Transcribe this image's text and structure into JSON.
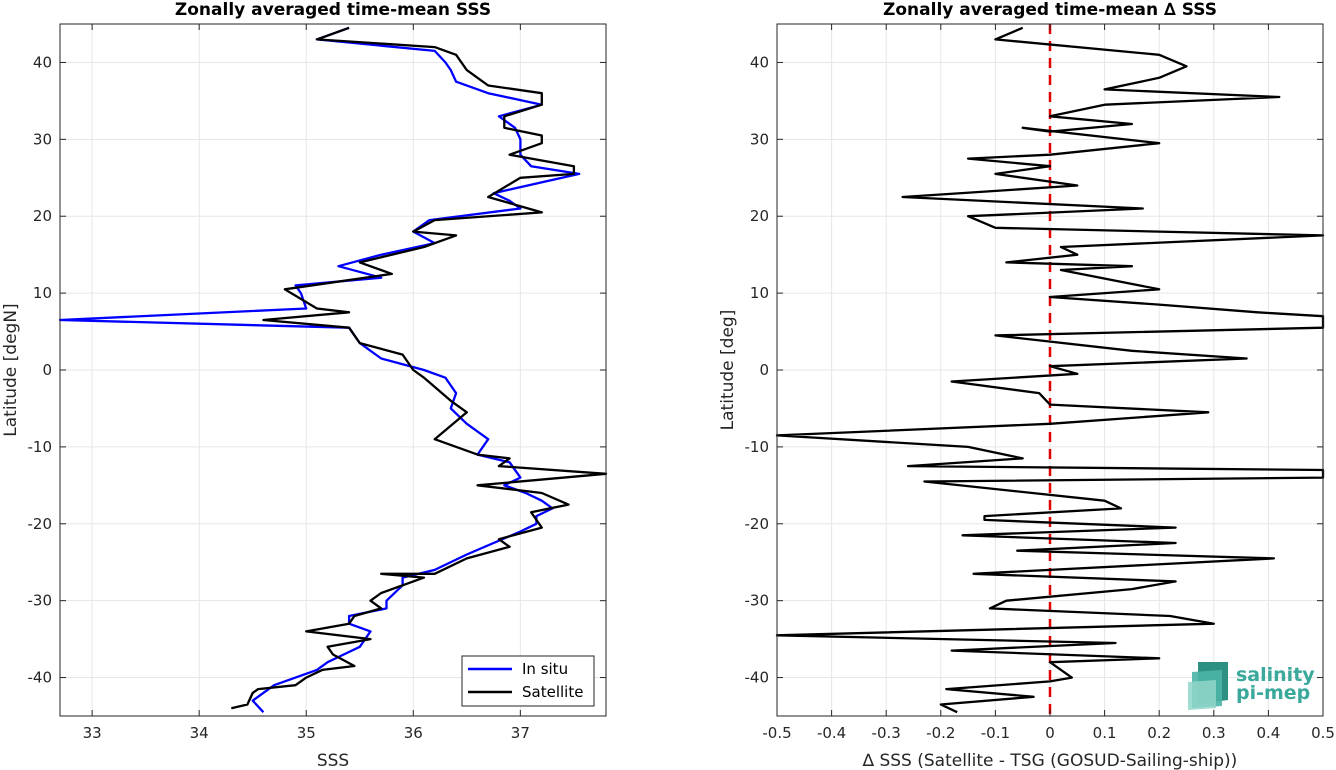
{
  "colors": {
    "insitu": "#0000ff",
    "satellite": "#000000",
    "zero_line": "#e00000",
    "grid": "#e6e6e6",
    "logo_teal": "#3aa89a"
  },
  "logo": {
    "line1": "salinity",
    "line2": "pi-mep"
  },
  "chart_data": [
    {
      "type": "line",
      "title": "Zonally averaged time-mean SSS",
      "xlabel": "SSS",
      "ylabel": "Latitude [degN]",
      "xlim": [
        32.7,
        37.8
      ],
      "ylim": [
        -45,
        45
      ],
      "xticks": [
        33,
        34,
        35,
        36,
        37
      ],
      "yticks": [
        -40,
        -30,
        -20,
        -10,
        0,
        10,
        20,
        30,
        40
      ],
      "grid": true,
      "legend_position": "bottom-right",
      "series": [
        {
          "name": "In situ",
          "color": "insitu",
          "points": [
            [
              35.4,
              44.5
            ],
            [
              35.1,
              43
            ],
            [
              36.2,
              41.5
            ],
            [
              36.3,
              40
            ],
            [
              36.35,
              39
            ],
            [
              36.4,
              37.5
            ],
            [
              36.7,
              36
            ],
            [
              37.2,
              34.5
            ],
            [
              36.8,
              33
            ],
            [
              36.95,
              31.5
            ],
            [
              37.0,
              30
            ],
            [
              37.0,
              28
            ],
            [
              37.1,
              26.5
            ],
            [
              37.55,
              25.5
            ],
            [
              36.75,
              23
            ],
            [
              36.9,
              22
            ],
            [
              37.0,
              21
            ],
            [
              36.15,
              19.5
            ],
            [
              36.0,
              18
            ],
            [
              36.2,
              16.5
            ],
            [
              35.7,
              15
            ],
            [
              35.3,
              13.5
            ],
            [
              35.7,
              12
            ],
            [
              34.9,
              11
            ],
            [
              34.95,
              10
            ],
            [
              35.0,
              8
            ],
            [
              32.7,
              6.5
            ],
            [
              35.4,
              5.5
            ],
            [
              35.5,
              3.5
            ],
            [
              35.7,
              1.5
            ],
            [
              36.1,
              0
            ],
            [
              36.3,
              -1
            ],
            [
              36.4,
              -3
            ],
            [
              36.35,
              -5
            ],
            [
              36.5,
              -7
            ],
            [
              36.7,
              -9
            ],
            [
              36.6,
              -11
            ],
            [
              36.9,
              -12
            ],
            [
              37.0,
              -14
            ],
            [
              36.85,
              -15
            ],
            [
              37.05,
              -16
            ],
            [
              37.2,
              -17
            ],
            [
              37.3,
              -18
            ],
            [
              37.15,
              -19
            ],
            [
              37.15,
              -20
            ],
            [
              37.0,
              -21
            ],
            [
              36.5,
              -24
            ],
            [
              36.2,
              -26
            ],
            [
              35.9,
              -27
            ],
            [
              35.9,
              -28
            ],
            [
              35.75,
              -30
            ],
            [
              35.75,
              -31
            ],
            [
              35.4,
              -32
            ],
            [
              35.4,
              -33
            ],
            [
              35.6,
              -34
            ],
            [
              35.55,
              -35
            ],
            [
              35.5,
              -36
            ],
            [
              35.35,
              -37
            ],
            [
              35.2,
              -38
            ],
            [
              35.1,
              -39
            ],
            [
              34.9,
              -40
            ],
            [
              34.7,
              -41
            ],
            [
              34.5,
              -43
            ],
            [
              34.6,
              -44.5
            ]
          ]
        },
        {
          "name": "Satellite",
          "color": "satellite",
          "points": [
            [
              35.4,
              44.5
            ],
            [
              35.1,
              43
            ],
            [
              36.2,
              42
            ],
            [
              36.4,
              41
            ],
            [
              36.5,
              39
            ],
            [
              36.6,
              38
            ],
            [
              36.7,
              37
            ],
            [
              37.2,
              36
            ],
            [
              37.2,
              34.5
            ],
            [
              36.85,
              33
            ],
            [
              36.85,
              31.5
            ],
            [
              37.2,
              30.5
            ],
            [
              37.2,
              29.5
            ],
            [
              36.9,
              28
            ],
            [
              37.5,
              26.5
            ],
            [
              37.5,
              25.5
            ],
            [
              37.0,
              25
            ],
            [
              36.7,
              22.5
            ],
            [
              37.2,
              20.5
            ],
            [
              36.2,
              19.5
            ],
            [
              36.0,
              18
            ],
            [
              36.4,
              17.5
            ],
            [
              36.1,
              16
            ],
            [
              35.5,
              14
            ],
            [
              35.8,
              12.5
            ],
            [
              34.8,
              10.5
            ],
            [
              35.1,
              8
            ],
            [
              35.4,
              7.5
            ],
            [
              34.6,
              6.5
            ],
            [
              35.4,
              5.5
            ],
            [
              35.5,
              3.5
            ],
            [
              35.9,
              2
            ],
            [
              36.0,
              0
            ],
            [
              36.1,
              -1
            ],
            [
              36.35,
              -4
            ],
            [
              36.5,
              -5.5
            ],
            [
              36.2,
              -9
            ],
            [
              36.6,
              -11
            ],
            [
              36.9,
              -11.5
            ],
            [
              36.8,
              -12.5
            ],
            [
              37.8,
              -13.5
            ],
            [
              36.6,
              -15
            ],
            [
              37.2,
              -16
            ],
            [
              37.45,
              -17.5
            ],
            [
              37.1,
              -18.5
            ],
            [
              37.2,
              -20.5
            ],
            [
              36.8,
              -22
            ],
            [
              36.9,
              -23
            ],
            [
              36.5,
              -24.5
            ],
            [
              36.2,
              -26.5
            ],
            [
              35.7,
              -26.5
            ],
            [
              36.1,
              -27
            ],
            [
              35.7,
              -29
            ],
            [
              35.6,
              -30
            ],
            [
              35.7,
              -31
            ],
            [
              35.45,
              -32
            ],
            [
              35.4,
              -33
            ],
            [
              35.0,
              -34
            ],
            [
              35.6,
              -35
            ],
            [
              35.2,
              -36
            ],
            [
              35.25,
              -37
            ],
            [
              35.45,
              -38.5
            ],
            [
              35.15,
              -39
            ],
            [
              35.0,
              -40
            ],
            [
              34.9,
              -41
            ],
            [
              34.55,
              -41.5
            ],
            [
              34.5,
              -42
            ],
            [
              34.45,
              -43.5
            ],
            [
              34.3,
              -44
            ]
          ]
        }
      ]
    },
    {
      "type": "line",
      "title": "Zonally averaged time-mean ∆ SSS",
      "xlabel": "∆ SSS (Satellite - TSG (GOSUD-Sailing-ship))",
      "ylabel": "Latitude [deg]",
      "xlim": [
        -0.5,
        0.5
      ],
      "ylim": [
        -45,
        45
      ],
      "xticks": [
        -0.5,
        -0.4,
        -0.3,
        -0.2,
        -0.1,
        0,
        0.1,
        0.2,
        0.3,
        0.4,
        0.5
      ],
      "yticks": [
        -40,
        -30,
        -20,
        -10,
        0,
        10,
        20,
        30,
        40
      ],
      "grid": true,
      "reference_line": {
        "x": 0,
        "style": "dashed",
        "color": "zero_line"
      },
      "series": [
        {
          "name": "",
          "color": "satellite",
          "points": [
            [
              -0.05,
              44.5
            ],
            [
              -0.1,
              43
            ],
            [
              0.2,
              41
            ],
            [
              0.25,
              39.5
            ],
            [
              0.2,
              38
            ],
            [
              0.1,
              36.5
            ],
            [
              0.42,
              35.5
            ],
            [
              0.1,
              34.5
            ],
            [
              0.0,
              33
            ],
            [
              0.15,
              32
            ],
            [
              0.0,
              31
            ],
            [
              -0.05,
              31.5
            ],
            [
              0.2,
              29.5
            ],
            [
              0.0,
              28
            ],
            [
              -0.15,
              27.5
            ],
            [
              0.0,
              26.5
            ],
            [
              -0.1,
              25.5
            ],
            [
              0.05,
              24
            ],
            [
              -0.27,
              22.5
            ],
            [
              0.17,
              21
            ],
            [
              -0.15,
              20
            ],
            [
              -0.1,
              18.5
            ],
            [
              0.5,
              17.5
            ],
            [
              0.02,
              16
            ],
            [
              0.05,
              15
            ],
            [
              -0.08,
              14
            ],
            [
              0.15,
              13.5
            ],
            [
              0.02,
              13
            ],
            [
              0.2,
              10.5
            ],
            [
              0.0,
              9.5
            ],
            [
              0.2,
              8.5
            ],
            [
              0.38,
              7.5
            ],
            [
              0.5,
              7
            ],
            [
              0.5,
              5.5
            ],
            [
              -0.1,
              4.5
            ],
            [
              0.15,
              2.5
            ],
            [
              0.36,
              1.5
            ],
            [
              0.0,
              0.5
            ],
            [
              0.05,
              -0.5
            ],
            [
              -0.18,
              -1.5
            ],
            [
              -0.02,
              -3
            ],
            [
              0.0,
              -4.5
            ],
            [
              0.29,
              -5.5
            ],
            [
              0.0,
              -7
            ],
            [
              -0.5,
              -8.5
            ],
            [
              -0.15,
              -10
            ],
            [
              -0.05,
              -11.5
            ],
            [
              -0.26,
              -12.5
            ],
            [
              0.5,
              -13
            ],
            [
              0.5,
              -14
            ],
            [
              -0.23,
              -14.5
            ],
            [
              0.1,
              -17
            ],
            [
              0.13,
              -18
            ],
            [
              -0.12,
              -19
            ],
            [
              -0.12,
              -19.5
            ],
            [
              0.23,
              -20.5
            ],
            [
              -0.16,
              -21.5
            ],
            [
              0.23,
              -22.5
            ],
            [
              -0.06,
              -23.5
            ],
            [
              0.41,
              -24.5
            ],
            [
              -0.14,
              -26.5
            ],
            [
              0.23,
              -27.5
            ],
            [
              0.15,
              -28.5
            ],
            [
              -0.08,
              -30
            ],
            [
              -0.11,
              -31
            ],
            [
              0.22,
              -32
            ],
            [
              0.3,
              -33
            ],
            [
              -0.5,
              -34.5
            ],
            [
              0.12,
              -35.5
            ],
            [
              -0.18,
              -36.5
            ],
            [
              0.2,
              -37.5
            ],
            [
              0.0,
              -38
            ],
            [
              0.04,
              -40
            ],
            [
              0.0,
              -40.5
            ],
            [
              -0.19,
              -41.5
            ],
            [
              -0.03,
              -42.5
            ],
            [
              -0.2,
              -43.5
            ],
            [
              -0.17,
              -44.5
            ]
          ]
        }
      ]
    }
  ]
}
